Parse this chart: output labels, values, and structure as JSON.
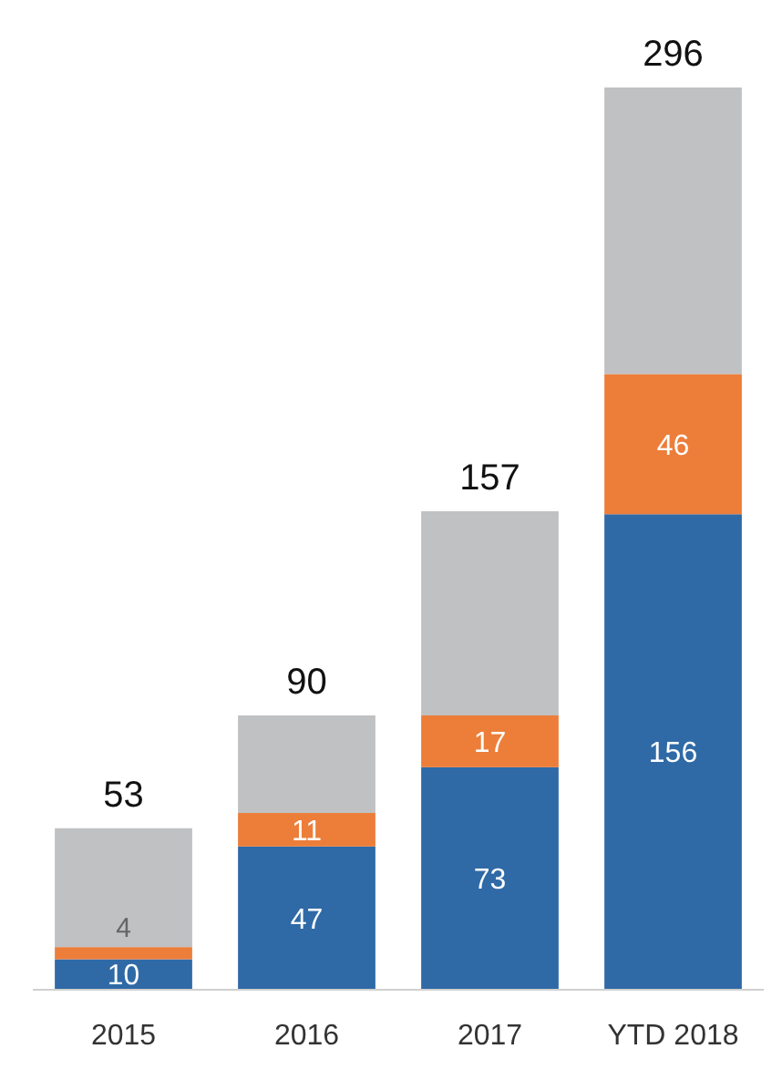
{
  "chart_data": {
    "type": "bar",
    "stacked": true,
    "categories": [
      "2015",
      "2016",
      "2017",
      "YTD 2018"
    ],
    "series": [
      {
        "color": "#2f6aa6",
        "values": [
          10,
          47,
          73,
          156
        ],
        "value_labels": [
          "10",
          "47",
          "73",
          "156"
        ]
      },
      {
        "color": "#ec7e3a",
        "values": [
          4,
          11,
          17,
          46
        ],
        "value_labels": [
          "4",
          "11",
          "17",
          "46"
        ]
      },
      {
        "color": "#bfc1c3",
        "values": [
          39,
          32,
          67,
          94
        ]
      }
    ],
    "totals": [
      "53",
      "90",
      "157",
      "296"
    ]
  }
}
